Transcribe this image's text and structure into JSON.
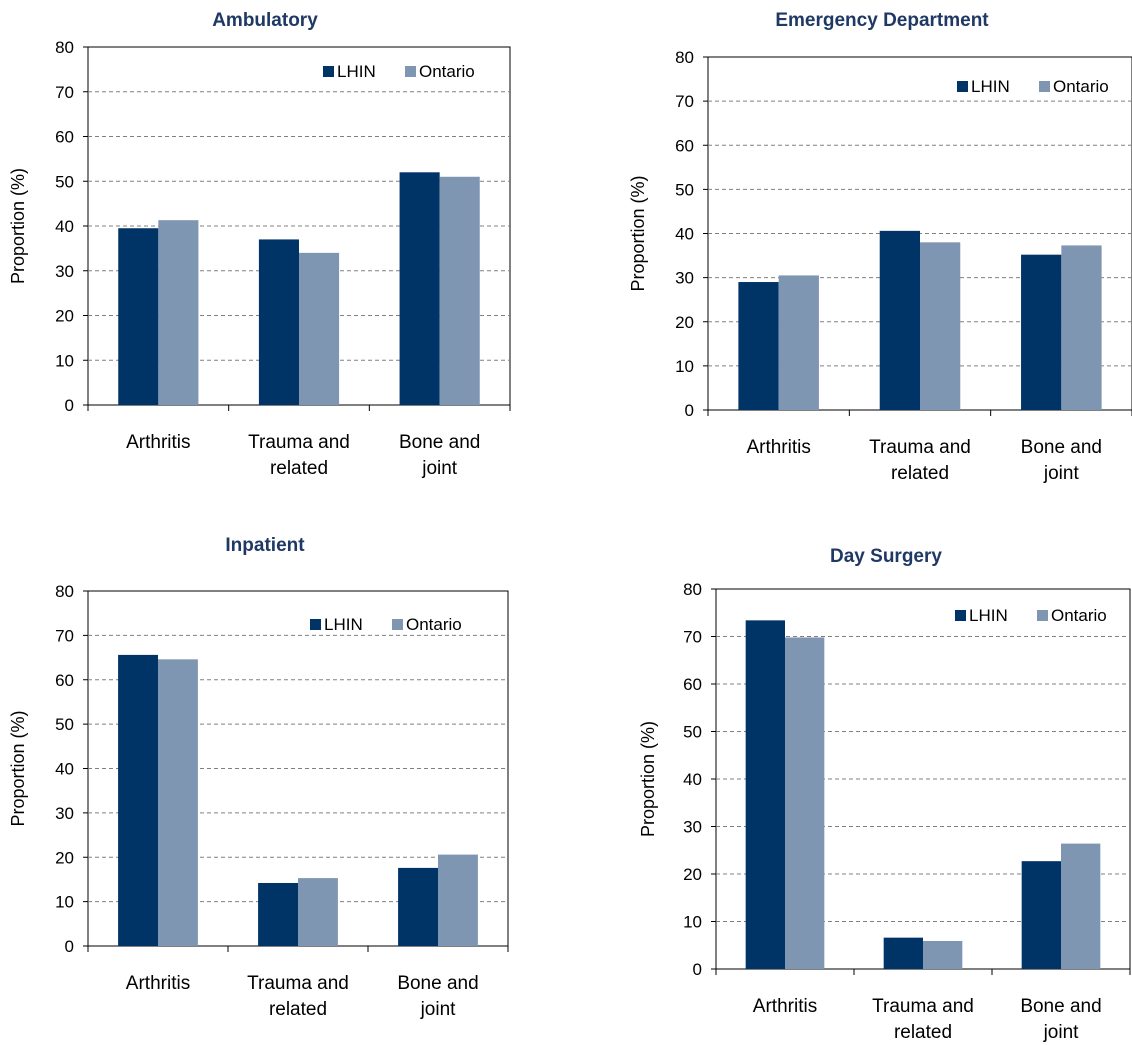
{
  "colors": {
    "lhin": "#003366",
    "ontario": "#7f96b2",
    "title": "#1f3864"
  },
  "ylabel": "Proportion (%)",
  "legend": [
    "LHIN",
    "Ontario"
  ],
  "yticks": [
    "0",
    "10",
    "20",
    "30",
    "40",
    "50",
    "60",
    "70",
    "80"
  ],
  "chart_data": [
    {
      "type": "bar",
      "title": "Ambulatory",
      "categories": [
        [
          "Arthritis"
        ],
        [
          "Trauma and",
          "related"
        ],
        [
          "Bone and",
          "joint"
        ]
      ],
      "ylabel": "Proportion (%)",
      "ylim": [
        0,
        80
      ],
      "grid": true,
      "legend_position": "top-right",
      "series": [
        {
          "name": "LHIN",
          "values": [
            39.5,
            37,
            52
          ]
        },
        {
          "name": "Ontario",
          "values": [
            41.3,
            34,
            51
          ]
        }
      ]
    },
    {
      "type": "bar",
      "title": "Emergency Department",
      "categories": [
        [
          "Arthritis"
        ],
        [
          "Trauma and",
          "related"
        ],
        [
          "Bone and",
          "joint"
        ]
      ],
      "ylabel": "Proportion (%)",
      "ylim": [
        0,
        80
      ],
      "grid": true,
      "legend_position": "top-right",
      "series": [
        {
          "name": "LHIN",
          "values": [
            29,
            40.6,
            35.2
          ]
        },
        {
          "name": "Ontario",
          "values": [
            30.5,
            38,
            37.3
          ]
        }
      ]
    },
    {
      "type": "bar",
      "title": "Inpatient",
      "categories": [
        [
          "Arthritis"
        ],
        [
          "Trauma and",
          "related"
        ],
        [
          "Bone and",
          "joint"
        ]
      ],
      "ylabel": "Proportion (%)",
      "ylim": [
        0,
        80
      ],
      "grid": true,
      "legend_position": "top-right",
      "series": [
        {
          "name": "LHIN",
          "values": [
            65.6,
            14.2,
            17.6
          ]
        },
        {
          "name": "Ontario",
          "values": [
            64.6,
            15.3,
            20.6
          ]
        }
      ]
    },
    {
      "type": "bar",
      "title": "Day Surgery",
      "categories": [
        [
          "Arthritis"
        ],
        [
          "Trauma and",
          "related"
        ],
        [
          "Bone and",
          "joint"
        ]
      ],
      "ylabel": "Proportion (%)",
      "ylim": [
        0,
        80
      ],
      "grid": true,
      "legend_position": "top-right",
      "series": [
        {
          "name": "LHIN",
          "values": [
            73.4,
            6.6,
            22.7
          ]
        },
        {
          "name": "Ontario",
          "values": [
            69.8,
            5.9,
            26.4
          ]
        }
      ]
    }
  ]
}
